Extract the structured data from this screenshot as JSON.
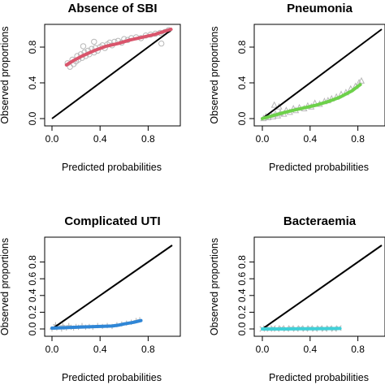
{
  "chart_data": [
    {
      "type": "scatter",
      "title": "Absence of SBI",
      "xlabel": "Predicted probabilities",
      "ylabel": "Observed proportions",
      "xlim": [
        0,
        1
      ],
      "ylim": [
        0,
        1
      ],
      "xticks": [
        "0.0",
        "0.4",
        "0.8"
      ],
      "yticks": [
        "0.0",
        "0.4",
        "0.8"
      ],
      "marker": "circle",
      "colors": {
        "smooth": "#d9546b",
        "points": "#b8b8b8",
        "reference": "#000000"
      },
      "reference_line": [
        [
          0,
          0
        ],
        [
          1,
          1
        ]
      ],
      "points": [
        [
          0.13,
          0.62
        ],
        [
          0.15,
          0.58
        ],
        [
          0.17,
          0.66
        ],
        [
          0.18,
          0.61
        ],
        [
          0.2,
          0.64
        ],
        [
          0.21,
          0.7
        ],
        [
          0.22,
          0.66
        ],
        [
          0.24,
          0.72
        ],
        [
          0.25,
          0.68
        ],
        [
          0.27,
          0.74
        ],
        [
          0.28,
          0.7
        ],
        [
          0.3,
          0.76
        ],
        [
          0.31,
          0.72
        ],
        [
          0.33,
          0.78
        ],
        [
          0.35,
          0.74
        ],
        [
          0.36,
          0.79
        ],
        [
          0.38,
          0.76
        ],
        [
          0.4,
          0.8
        ],
        [
          0.42,
          0.82
        ],
        [
          0.44,
          0.79
        ],
        [
          0.46,
          0.83
        ],
        [
          0.48,
          0.85
        ],
        [
          0.5,
          0.82
        ],
        [
          0.52,
          0.86
        ],
        [
          0.55,
          0.87
        ],
        [
          0.58,
          0.85
        ],
        [
          0.6,
          0.89
        ],
        [
          0.63,
          0.88
        ],
        [
          0.66,
          0.9
        ],
        [
          0.7,
          0.91
        ],
        [
          0.74,
          0.9
        ],
        [
          0.78,
          0.93
        ],
        [
          0.82,
          0.94
        ],
        [
          0.86,
          0.95
        ],
        [
          0.9,
          0.96
        ],
        [
          0.94,
          0.97
        ],
        [
          0.97,
          0.99
        ],
        [
          0.91,
          0.84
        ],
        [
          0.35,
          0.86
        ],
        [
          0.26,
          0.81
        ]
      ],
      "smooth": [
        [
          0.12,
          0.6
        ],
        [
          0.18,
          0.65
        ],
        [
          0.25,
          0.7
        ],
        [
          0.35,
          0.76
        ],
        [
          0.45,
          0.81
        ],
        [
          0.55,
          0.84
        ],
        [
          0.65,
          0.88
        ],
        [
          0.75,
          0.91
        ],
        [
          0.85,
          0.94
        ],
        [
          0.92,
          0.97
        ],
        [
          0.99,
          1.0
        ]
      ]
    },
    {
      "type": "scatter",
      "title": "Pneumonia",
      "xlabel": "Predicted probabilities",
      "ylabel": "Observed proportions",
      "xlim": [
        0,
        1
      ],
      "ylim": [
        0,
        1
      ],
      "xticks": [
        "0.0",
        "0.4",
        "0.8"
      ],
      "yticks": [
        "0.0",
        "0.4",
        "0.8"
      ],
      "marker": "triangle",
      "colors": {
        "smooth": "#6dd14a",
        "points": "#b8b8b8",
        "reference": "#000000"
      },
      "reference_line": [
        [
          0,
          0
        ],
        [
          1,
          1
        ]
      ],
      "points": [
        [
          0.01,
          0.0
        ],
        [
          0.03,
          0.02
        ],
        [
          0.05,
          0.01
        ],
        [
          0.07,
          0.04
        ],
        [
          0.09,
          0.02
        ],
        [
          0.11,
          0.05
        ],
        [
          0.13,
          0.03
        ],
        [
          0.15,
          0.06
        ],
        [
          0.18,
          0.05
        ],
        [
          0.2,
          0.09
        ],
        [
          0.23,
          0.07
        ],
        [
          0.26,
          0.11
        ],
        [
          0.28,
          0.09
        ],
        [
          0.31,
          0.12
        ],
        [
          0.35,
          0.11
        ],
        [
          0.38,
          0.14
        ],
        [
          0.41,
          0.13
        ],
        [
          0.44,
          0.17
        ],
        [
          0.48,
          0.16
        ],
        [
          0.52,
          0.19
        ],
        [
          0.55,
          0.2
        ],
        [
          0.58,
          0.22
        ],
        [
          0.62,
          0.24
        ],
        [
          0.66,
          0.27
        ],
        [
          0.7,
          0.29
        ],
        [
          0.74,
          0.33
        ],
        [
          0.78,
          0.36
        ],
        [
          0.81,
          0.4
        ],
        [
          0.83,
          0.42
        ],
        [
          0.1,
          0.15
        ],
        [
          0.14,
          0.13
        ]
      ],
      "smooth": [
        [
          0.0,
          0.0
        ],
        [
          0.08,
          0.03
        ],
        [
          0.16,
          0.06
        ],
        [
          0.25,
          0.09
        ],
        [
          0.35,
          0.12
        ],
        [
          0.45,
          0.15
        ],
        [
          0.55,
          0.19
        ],
        [
          0.65,
          0.24
        ],
        [
          0.75,
          0.31
        ],
        [
          0.82,
          0.38
        ]
      ]
    },
    {
      "type": "scatter",
      "title": "Complicated UTI",
      "xlabel": "Predicted probabilities",
      "ylabel": "Observed proportions",
      "xlim": [
        0,
        1
      ],
      "ylim": [
        0,
        1
      ],
      "xticks": [
        "0.0",
        "0.4",
        "0.8"
      ],
      "yticks": [
        "0.0",
        "0.2",
        "0.4",
        "0.6",
        "0.8"
      ],
      "marker": "plus",
      "colors": {
        "smooth": "#2f86d6",
        "points": "#b8b8b8",
        "reference": "#000000"
      },
      "reference_line": [
        [
          0,
          0
        ],
        [
          1,
          1
        ]
      ],
      "points": [
        [
          0.0,
          0.0
        ],
        [
          0.02,
          0.02
        ],
        [
          0.04,
          0.01
        ],
        [
          0.06,
          0.03
        ],
        [
          0.08,
          0.0
        ],
        [
          0.1,
          0.02
        ],
        [
          0.12,
          0.01
        ],
        [
          0.14,
          0.04
        ],
        [
          0.16,
          0.02
        ],
        [
          0.18,
          0.01
        ],
        [
          0.2,
          0.03
        ],
        [
          0.22,
          0.02
        ],
        [
          0.25,
          0.04
        ],
        [
          0.28,
          0.02
        ],
        [
          0.31,
          0.03
        ],
        [
          0.34,
          0.02
        ],
        [
          0.38,
          0.04
        ],
        [
          0.42,
          0.03
        ],
        [
          0.46,
          0.04
        ],
        [
          0.5,
          0.03
        ],
        [
          0.54,
          0.05
        ],
        [
          0.58,
          0.06
        ],
        [
          0.62,
          0.07
        ],
        [
          0.66,
          0.08
        ],
        [
          0.7,
          0.1
        ],
        [
          0.73,
          0.11
        ],
        [
          0.03,
          0.05
        ],
        [
          0.09,
          0.04
        ]
      ],
      "smooth": [
        [
          0.0,
          0.01
        ],
        [
          0.1,
          0.015
        ],
        [
          0.2,
          0.02
        ],
        [
          0.3,
          0.025
        ],
        [
          0.4,
          0.03
        ],
        [
          0.5,
          0.035
        ],
        [
          0.55,
          0.045
        ],
        [
          0.6,
          0.06
        ],
        [
          0.68,
          0.08
        ],
        [
          0.74,
          0.1
        ]
      ]
    },
    {
      "type": "scatter",
      "title": "Bacteraemia",
      "xlabel": "Predicted probabilities",
      "ylabel": "Observed proportions",
      "xlim": [
        0,
        1
      ],
      "ylim": [
        0,
        1
      ],
      "xticks": [
        "0.0",
        "0.4",
        "0.8"
      ],
      "yticks": [
        "0.0",
        "0.2",
        "0.4",
        "0.6",
        "0.8"
      ],
      "marker": "cross",
      "colors": {
        "smooth": "#40d0d8",
        "points": "#b8b8b8",
        "reference": "#000000"
      },
      "reference_line": [
        [
          0,
          0
        ],
        [
          1,
          1
        ]
      ],
      "points": [
        [
          0.0,
          0.0
        ],
        [
          0.03,
          0.01
        ],
        [
          0.06,
          0.0
        ],
        [
          0.09,
          0.01
        ],
        [
          0.12,
          0.0
        ],
        [
          0.16,
          0.01
        ],
        [
          0.2,
          0.0
        ],
        [
          0.24,
          0.01
        ],
        [
          0.28,
          0.0
        ],
        [
          0.32,
          0.01
        ],
        [
          0.36,
          0.0
        ],
        [
          0.4,
          0.01
        ],
        [
          0.44,
          0.0
        ],
        [
          0.48,
          0.01
        ],
        [
          0.52,
          0.0
        ],
        [
          0.56,
          0.01
        ],
        [
          0.6,
          0.0
        ],
        [
          0.64,
          0.01
        ]
      ],
      "smooth": [
        [
          0.0,
          0.0
        ],
        [
          0.1,
          0.0
        ],
        [
          0.2,
          0.0
        ],
        [
          0.3,
          0.002
        ],
        [
          0.4,
          0.003
        ],
        [
          0.5,
          0.004
        ],
        [
          0.6,
          0.005
        ],
        [
          0.65,
          0.006
        ]
      ]
    }
  ]
}
